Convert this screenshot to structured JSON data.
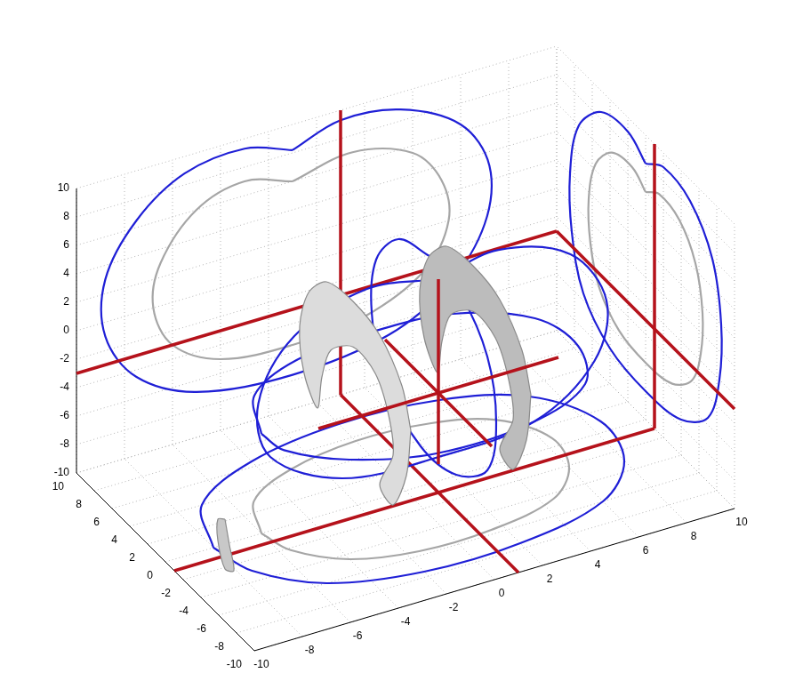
{
  "chart_data": {
    "type": "3d",
    "xlim": [
      -10,
      10
    ],
    "ylim": [
      -10,
      10
    ],
    "zlim": [
      -10,
      10
    ],
    "xticks": [
      -10,
      -8,
      -6,
      -4,
      -2,
      0,
      2,
      4,
      6,
      8,
      10
    ],
    "yticks": [
      -10,
      -8,
      -6,
      -4,
      -2,
      0,
      2,
      4,
      6,
      8,
      10
    ],
    "zticks": [
      -10,
      -8,
      -6,
      -4,
      -2,
      0,
      2,
      4,
      6,
      8,
      10
    ],
    "grid": true,
    "series": [
      {
        "type": "line",
        "color": "#a6a6a6",
        "values": [
          [
            -1,
            10,
            6
          ],
          [
            -3,
            10,
            7
          ],
          [
            -5,
            10,
            6
          ],
          [
            -6.5,
            10,
            3
          ],
          [
            -6.8,
            10,
            0
          ],
          [
            -6,
            10,
            -3
          ],
          [
            -4,
            10,
            -5
          ],
          [
            -1,
            10,
            -5.5
          ],
          [
            2,
            10,
            -5
          ],
          [
            4.5,
            10,
            -3
          ],
          [
            5.5,
            10,
            0
          ],
          [
            5.2,
            10,
            3
          ],
          [
            4,
            10,
            5.5
          ],
          [
            1.5,
            10,
            6.8
          ],
          [
            -1,
            10,
            6
          ]
        ]
      },
      {
        "type": "line",
        "color": "#1f1fd6",
        "values": [
          [
            -1,
            10,
            8.2
          ],
          [
            -3,
            10,
            9.3
          ],
          [
            -5.5,
            10,
            8.8
          ],
          [
            -7.5,
            10,
            6.5
          ],
          [
            -8.8,
            10,
            3
          ],
          [
            -8.8,
            10,
            -1
          ],
          [
            -7.5,
            10,
            -4.5
          ],
          [
            -5,
            10,
            -6.8
          ],
          [
            -1,
            10,
            -7.6
          ],
          [
            3,
            10,
            -6.8
          ],
          [
            5.5,
            10,
            -4.5
          ],
          [
            7,
            10,
            -1
          ],
          [
            7.2,
            10,
            3
          ],
          [
            6,
            10,
            6.5
          ],
          [
            3.5,
            10,
            8.8
          ],
          [
            1,
            10,
            9.3
          ],
          [
            -1,
            10,
            8.2
          ]
        ]
      },
      {
        "type": "line",
        "color": "#a6a6a6",
        "values": [
          [
            10,
            0,
            6
          ],
          [
            10,
            1.5,
            6.8
          ],
          [
            10,
            3.8,
            6.4
          ],
          [
            10,
            5.6,
            4.5
          ],
          [
            10,
            6.4,
            1.5
          ],
          [
            10,
            6.2,
            -1.5
          ],
          [
            10,
            5.2,
            -4
          ],
          [
            10,
            3,
            -5.6
          ],
          [
            10,
            0,
            -6
          ],
          [
            10,
            -3,
            -5.6
          ],
          [
            10,
            -5.2,
            -4
          ],
          [
            10,
            -6.2,
            -1.5
          ],
          [
            10,
            -6.4,
            1.5
          ],
          [
            10,
            -5.6,
            4.5
          ],
          [
            10,
            -3.8,
            6.4
          ],
          [
            10,
            -1.5,
            6.8
          ],
          [
            10,
            0,
            6
          ]
        ]
      },
      {
        "type": "line",
        "color": "#1f1fd6",
        "values": [
          [
            10,
            0,
            8
          ],
          [
            10,
            2,
            9
          ],
          [
            10,
            5,
            8.5
          ],
          [
            10,
            7.5,
            6
          ],
          [
            10,
            8.5,
            2
          ],
          [
            10,
            8.3,
            -2
          ],
          [
            10,
            7,
            -5.5
          ],
          [
            10,
            4,
            -7.5
          ],
          [
            10,
            0,
            -8
          ],
          [
            10,
            -4,
            -7.5
          ],
          [
            10,
            -7,
            -5.5
          ],
          [
            10,
            -8.3,
            -2
          ],
          [
            10,
            -8.5,
            2
          ],
          [
            10,
            -7.5,
            6
          ],
          [
            10,
            -5,
            8.5
          ],
          [
            10,
            -2,
            9
          ],
          [
            10,
            0,
            8
          ]
        ]
      },
      {
        "type": "line",
        "color": "#a6a6a6",
        "values": [
          [
            -6,
            0,
            -10
          ],
          [
            -5.2,
            3,
            -10
          ],
          [
            -3,
            4.8,
            -10
          ],
          [
            0,
            5.6,
            -10
          ],
          [
            3,
            5.2,
            -10
          ],
          [
            5.2,
            3.8,
            -10
          ],
          [
            6.4,
            0.8,
            -10
          ],
          [
            6,
            -2.2,
            -10
          ],
          [
            4.5,
            -4.5,
            -10
          ],
          [
            1.5,
            -5.6,
            -10
          ],
          [
            -1.5,
            -5.6,
            -10
          ],
          [
            -4,
            -4.5,
            -10
          ],
          [
            -5.6,
            -2.2,
            -10
          ],
          [
            -6,
            0,
            -10
          ]
        ]
      },
      {
        "type": "line",
        "color": "#1f1fd6",
        "values": [
          [
            -8,
            0,
            -10
          ],
          [
            -7,
            4,
            -10
          ],
          [
            -4,
            6.5,
            -10
          ],
          [
            0,
            7.5,
            -10
          ],
          [
            4,
            7,
            -10
          ],
          [
            7,
            5,
            -10
          ],
          [
            8.5,
            1,
            -10
          ],
          [
            8,
            -3,
            -10
          ],
          [
            6,
            -6,
            -10
          ],
          [
            2,
            -7.5,
            -10
          ],
          [
            -2,
            -7.5,
            -10
          ],
          [
            -5.5,
            -6,
            -10
          ],
          [
            -7.5,
            -3,
            -10
          ],
          [
            -8,
            0,
            -10
          ]
        ]
      },
      {
        "type": "line",
        "color": "#b5121b",
        "values": [
          [
            1,
            10,
            -10
          ],
          [
            1,
            10,
            10
          ]
        ]
      },
      {
        "type": "line",
        "color": "#b5121b",
        "values": [
          [
            -10,
            10,
            -3
          ],
          [
            10,
            10,
            -3
          ]
        ]
      },
      {
        "type": "line",
        "color": "#b5121b",
        "values": [
          [
            10,
            -1,
            -10
          ],
          [
            10,
            -1,
            10
          ]
        ]
      },
      {
        "type": "line",
        "color": "#b5121b",
        "values": [
          [
            10,
            -10,
            -3
          ],
          [
            10,
            10,
            -3
          ]
        ]
      },
      {
        "type": "line",
        "color": "#b5121b",
        "values": [
          [
            1,
            -10,
            -10
          ],
          [
            1,
            10,
            -10
          ]
        ]
      },
      {
        "type": "line",
        "color": "#b5121b",
        "values": [
          [
            -10,
            -1,
            -10
          ],
          [
            10,
            -1,
            -10
          ]
        ]
      },
      {
        "type": "line",
        "color": "#1f1fd6",
        "values": [
          [
            -6,
            0,
            -3
          ],
          [
            -5,
            3.5,
            -3
          ],
          [
            -2.5,
            5.5,
            -3
          ],
          [
            1,
            6,
            -3
          ],
          [
            4,
            5.5,
            -3
          ],
          [
            6.5,
            3,
            -3
          ],
          [
            7,
            -0.5,
            -3
          ],
          [
            6,
            -4,
            -3
          ],
          [
            3,
            -6,
            -3
          ],
          [
            -1,
            -6.2,
            -3
          ],
          [
            -4,
            -4.5,
            -3
          ],
          [
            -5.8,
            -2,
            -3
          ],
          [
            -6,
            0,
            -3
          ]
        ]
      },
      {
        "type": "line",
        "color": "#1f1fd6",
        "values": [
          [
            1,
            -1,
            5
          ],
          [
            -2,
            -1,
            5.8
          ],
          [
            -5,
            -1,
            4
          ],
          [
            -6.5,
            -1,
            0
          ],
          [
            -6,
            -1,
            -4
          ],
          [
            -3,
            -1,
            -7
          ],
          [
            1,
            -1,
            -7.5
          ],
          [
            5,
            -1,
            -7
          ],
          [
            7.5,
            -1,
            -4
          ],
          [
            8,
            -1,
            0
          ],
          [
            6.5,
            -1,
            4
          ],
          [
            3.5,
            -1,
            5.8
          ],
          [
            1,
            -1,
            5
          ]
        ]
      },
      {
        "type": "line",
        "color": "#1f1fd6",
        "values": [
          [
            1,
            0,
            6
          ],
          [
            1,
            3.5,
            5
          ],
          [
            1,
            6,
            2
          ],
          [
            1,
            6.5,
            -2
          ],
          [
            1,
            5,
            -6
          ],
          [
            1,
            1,
            -8
          ],
          [
            1,
            -3,
            -7.5
          ],
          [
            1,
            -6.5,
            -5
          ],
          [
            1,
            -7.5,
            -1
          ],
          [
            1,
            -6.5,
            3
          ],
          [
            1,
            -3.5,
            5.5
          ],
          [
            1,
            0,
            6
          ]
        ]
      },
      {
        "type": "area",
        "color": "#bcbcbc",
        "values": [
          [
            3,
            -6,
            -1
          ],
          [
            3,
            -5,
            1.5
          ],
          [
            3,
            -2.5,
            3.5
          ],
          [
            3,
            0.5,
            4
          ],
          [
            3,
            3.5,
            3.5
          ],
          [
            3,
            5.5,
            1.5
          ],
          [
            3,
            6.5,
            -1.5
          ],
          [
            3,
            6,
            -4.5
          ],
          [
            3,
            4.5,
            -6
          ],
          [
            3,
            4,
            -3.5
          ],
          [
            3,
            3,
            -1
          ],
          [
            3,
            0.5,
            0.8
          ],
          [
            3,
            -2,
            0.5
          ],
          [
            3,
            -3.5,
            -1.5
          ],
          [
            3,
            -4,
            -4
          ],
          [
            3,
            -2.5,
            -7
          ],
          [
            3,
            -4,
            -7.5
          ],
          [
            3,
            -5.5,
            -4.5
          ],
          [
            3,
            -6,
            -1
          ]
        ]
      },
      {
        "type": "area",
        "color": "#dcdcdc",
        "values": [
          [
            -2,
            -6,
            -1
          ],
          [
            -2,
            -5,
            1.5
          ],
          [
            -2,
            -2.5,
            3.5
          ],
          [
            -2,
            0.5,
            4
          ],
          [
            -2,
            3.5,
            3.5
          ],
          [
            -2,
            5.5,
            1.5
          ],
          [
            -2,
            6.5,
            -1.5
          ],
          [
            -2,
            6,
            -4.5
          ],
          [
            -2,
            4.5,
            -6
          ],
          [
            -2,
            4,
            -3.5
          ],
          [
            -2,
            3,
            -1
          ],
          [
            -2,
            0.5,
            0.8
          ],
          [
            -2,
            -2,
            0.5
          ],
          [
            -2,
            -3.5,
            -1.5
          ],
          [
            -2,
            -4,
            -4
          ],
          [
            -2,
            -2.5,
            -7
          ],
          [
            -2,
            -4,
            -7.5
          ],
          [
            -2,
            -5.5,
            -4.5
          ],
          [
            -2,
            -6,
            -1
          ]
        ]
      },
      {
        "type": "area",
        "color": "#c8c8c8",
        "values": [
          [
            -9,
            -4,
            -5
          ],
          [
            -9,
            -4.5,
            -6.5
          ],
          [
            -9,
            -5,
            -8
          ],
          [
            -9,
            -4,
            -8.5
          ],
          [
            -9,
            -3.2,
            -7
          ],
          [
            -9,
            -3.2,
            -5.5
          ],
          [
            -9,
            -4,
            -5
          ]
        ]
      },
      {
        "type": "line",
        "color": "#b5121b",
        "values": [
          [
            -4,
            -1,
            -3
          ],
          [
            6,
            -1,
            -3
          ]
        ]
      },
      {
        "type": "line",
        "color": "#b5121b",
        "values": [
          [
            1,
            -7,
            -3
          ],
          [
            1,
            5,
            -3
          ]
        ]
      },
      {
        "type": "line",
        "color": "#b5121b",
        "values": [
          [
            1,
            -1,
            -8
          ],
          [
            1,
            -1,
            5
          ]
        ]
      }
    ]
  }
}
